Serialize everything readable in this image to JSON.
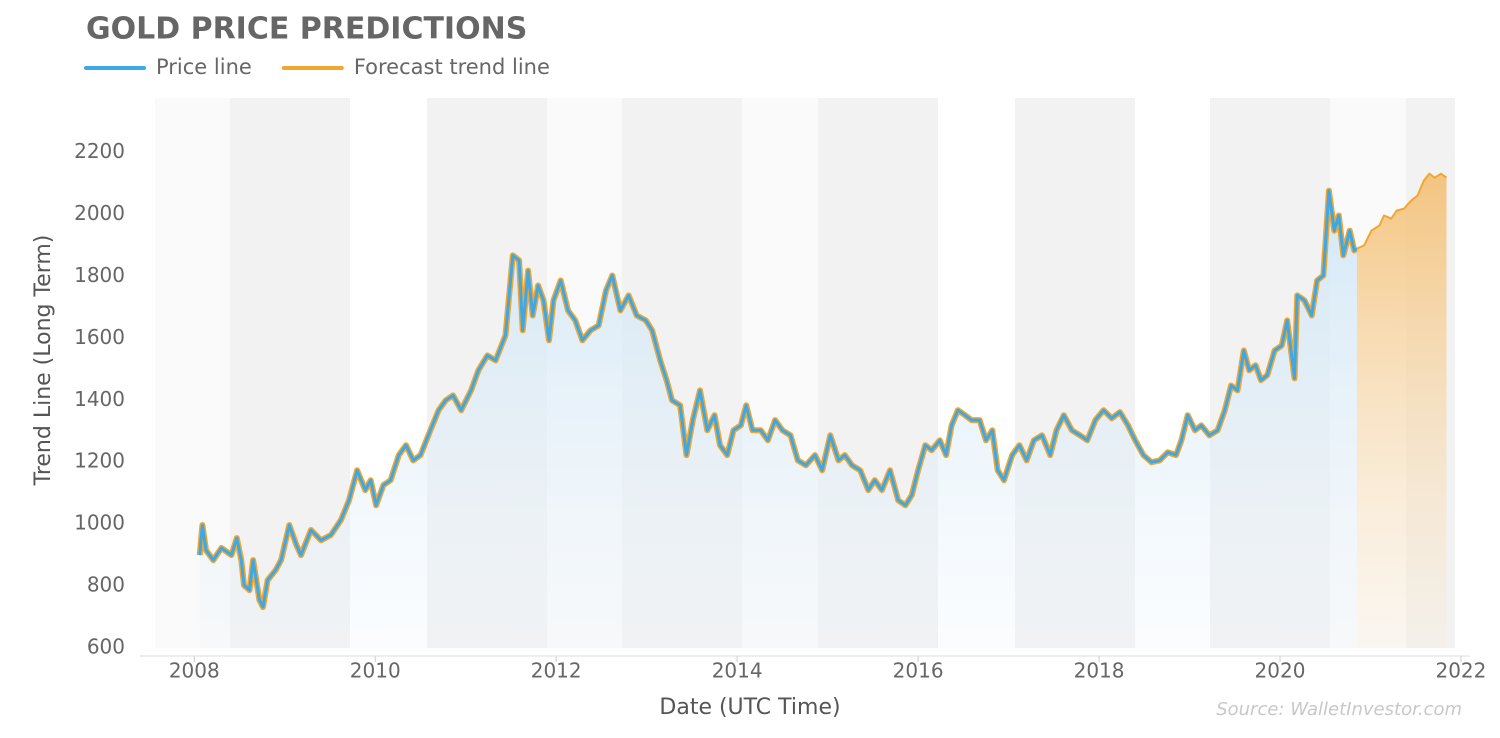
{
  "chart_data": {
    "type": "line",
    "title": "GOLD PRICE PREDICTIONS",
    "xlabel": "Date (UTC Time)",
    "ylabel": "Trend Line (Long Term)",
    "source": "Source: WalletInvestor.com",
    "xlim": [
      2007.4,
      2022.1
    ],
    "xticks": [
      2008,
      2010,
      2012,
      2014,
      2016,
      2018,
      2020,
      2022
    ],
    "ylim": [
      600,
      2370
    ],
    "yticks": [
      600,
      800,
      1000,
      1200,
      1400,
      1600,
      1800,
      2000,
      2200
    ],
    "grid": false,
    "series": [
      {
        "name": "Price line",
        "color": "#3ea7e6",
        "x": [
          2008.06,
          2008.09,
          2008.13,
          2008.21,
          2008.3,
          2008.41,
          2008.47,
          2008.52,
          2008.55,
          2008.61,
          2008.65,
          2008.72,
          2008.76,
          2008.81,
          2008.9,
          2008.96,
          2009.05,
          2009.13,
          2009.18,
          2009.29,
          2009.4,
          2009.51,
          2009.62,
          2009.71,
          2009.8,
          2009.89,
          2009.95,
          2010.01,
          2010.09,
          2010.17,
          2010.26,
          2010.34,
          2010.42,
          2010.5,
          2010.61,
          2010.7,
          2010.78,
          2010.86,
          2010.95,
          2011.06,
          2011.14,
          2011.24,
          2011.33,
          2011.44,
          2011.52,
          2011.59,
          2011.63,
          2011.69,
          2011.74,
          2011.8,
          2011.86,
          2011.92,
          2011.97,
          2012.05,
          2012.13,
          2012.21,
          2012.29,
          2012.38,
          2012.47,
          2012.55,
          2012.62,
          2012.71,
          2012.8,
          2012.89,
          2012.99,
          2013.06,
          2013.15,
          2013.22,
          2013.28,
          2013.37,
          2013.44,
          2013.51,
          2013.59,
          2013.67,
          2013.75,
          2013.81,
          2013.89,
          2013.96,
          2014.04,
          2014.1,
          2014.17,
          2014.26,
          2014.34,
          2014.42,
          2014.5,
          2014.59,
          2014.67,
          2014.76,
          2014.86,
          2014.94,
          2015.03,
          2015.12,
          2015.19,
          2015.27,
          2015.36,
          2015.45,
          2015.52,
          2015.6,
          2015.69,
          2015.78,
          2015.86,
          2015.93,
          2016.0,
          2016.08,
          2016.15,
          2016.24,
          2016.31,
          2016.37,
          2016.44,
          2016.52,
          2016.59,
          2016.68,
          2016.75,
          2016.82,
          2016.88,
          2016.95,
          2017.04,
          2017.12,
          2017.2,
          2017.28,
          2017.37,
          2017.46,
          2017.53,
          2017.61,
          2017.7,
          2017.79,
          2017.87,
          2017.96,
          2018.05,
          2018.14,
          2018.23,
          2018.32,
          2018.4,
          2018.49,
          2018.58,
          2018.67,
          2018.76,
          2018.85,
          2018.91,
          2018.98,
          2019.06,
          2019.13,
          2019.22,
          2019.31,
          2019.39,
          2019.46,
          2019.53,
          2019.6,
          2019.66,
          2019.73,
          2019.79,
          2019.86,
          2019.94,
          2020.02,
          2020.08,
          2020.16,
          2020.19,
          2020.27,
          2020.35,
          2020.41,
          2020.48,
          2020.54,
          2020.6,
          2020.65,
          2020.7,
          2020.77,
          2020.82,
          2020.85
        ],
        "values": [
          900,
          997,
          916,
          884,
          923,
          900,
          955,
          884,
          803,
          787,
          884,
          755,
          732,
          819,
          852,
          884,
          997,
          932,
          900,
          981,
          948,
          965,
          1013,
          1077,
          1174,
          1110,
          1142,
          1061,
          1126,
          1142,
          1223,
          1255,
          1206,
          1223,
          1303,
          1368,
          1400,
          1416,
          1368,
          1432,
          1497,
          1545,
          1529,
          1610,
          1868,
          1852,
          1626,
          1819,
          1674,
          1771,
          1723,
          1594,
          1723,
          1787,
          1690,
          1658,
          1594,
          1626,
          1642,
          1755,
          1803,
          1690,
          1739,
          1674,
          1658,
          1626,
          1529,
          1465,
          1400,
          1384,
          1223,
          1336,
          1432,
          1303,
          1352,
          1255,
          1223,
          1303,
          1319,
          1384,
          1303,
          1303,
          1271,
          1336,
          1303,
          1287,
          1206,
          1190,
          1223,
          1174,
          1287,
          1206,
          1223,
          1190,
          1174,
          1110,
          1142,
          1110,
          1174,
          1077,
          1061,
          1094,
          1174,
          1255,
          1239,
          1271,
          1223,
          1319,
          1368,
          1352,
          1336,
          1336,
          1271,
          1303,
          1174,
          1142,
          1223,
          1255,
          1206,
          1271,
          1287,
          1223,
          1303,
          1352,
          1303,
          1287,
          1271,
          1336,
          1368,
          1342,
          1362,
          1319,
          1271,
          1223,
          1200,
          1206,
          1232,
          1223,
          1271,
          1352,
          1303,
          1319,
          1287,
          1303,
          1368,
          1448,
          1432,
          1561,
          1497,
          1513,
          1465,
          1481,
          1561,
          1577,
          1658,
          1471,
          1739,
          1723,
          1674,
          1787,
          1803,
          2077,
          1948,
          1997,
          1868,
          1948,
          1884,
          1890
        ]
      },
      {
        "name": "Forecast trend line",
        "color": "#f0a732",
        "x": [
          2020.85,
          2020.93,
          2021.01,
          2021.1,
          2021.15,
          2021.23,
          2021.29,
          2021.37,
          2021.45,
          2021.52,
          2021.59,
          2021.65,
          2021.71,
          2021.78,
          2021.84
        ],
        "values": [
          1890,
          1900,
          1948,
          1965,
          1997,
          1987,
          2013,
          2019,
          2045,
          2061,
          2110,
          2132,
          2119,
          2132,
          2119
        ]
      }
    ]
  }
}
